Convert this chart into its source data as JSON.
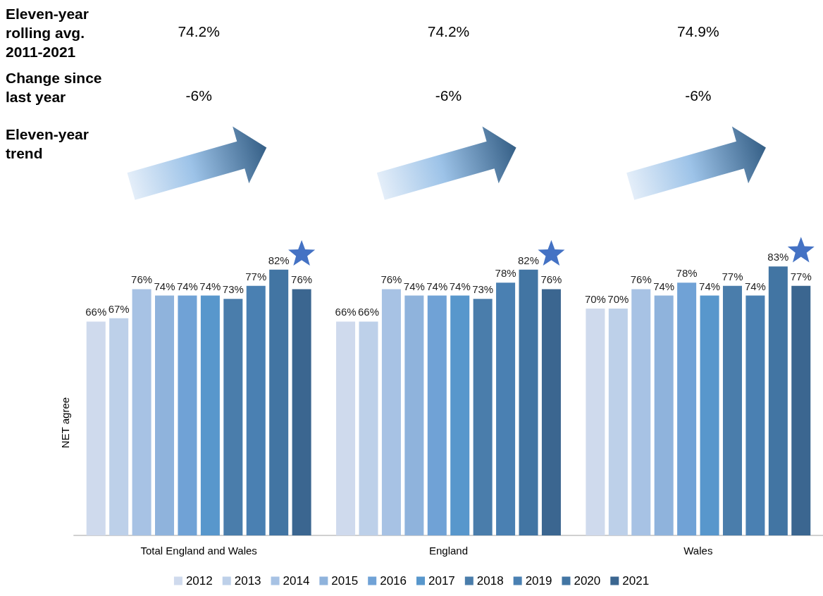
{
  "chart_data": {
    "type": "bar",
    "ylabel": "NET agree",
    "categories": [
      "Total England and Wales",
      "England",
      "Wales"
    ],
    "series": [
      {
        "name": "2012",
        "color": "#cfdaed",
        "values": [
          66,
          66,
          70
        ],
        "value_labels": [
          "66%",
          "66%",
          "70%"
        ]
      },
      {
        "name": "2013",
        "color": "#bdd0e9",
        "values": [
          67,
          66,
          70
        ],
        "value_labels": [
          "67%",
          "66%",
          "70%"
        ]
      },
      {
        "name": "2014",
        "color": "#a7c2e4",
        "values": [
          76,
          76,
          76
        ],
        "value_labels": [
          "76%",
          "76%",
          "76%"
        ]
      },
      {
        "name": "2015",
        "color": "#8fb3dc",
        "values": [
          74,
          74,
          74
        ],
        "value_labels": [
          "74%",
          "74%",
          "74%"
        ]
      },
      {
        "name": "2016",
        "color": "#70a2d6",
        "values": [
          74,
          74,
          78
        ],
        "value_labels": [
          "74%",
          "74%",
          "78%"
        ]
      },
      {
        "name": "2017",
        "color": "#5897cc",
        "values": [
          74,
          74,
          74
        ],
        "value_labels": [
          "74%",
          "74%",
          "74%"
        ]
      },
      {
        "name": "2018",
        "color": "#4a7dab",
        "values": [
          73,
          73,
          77
        ],
        "value_labels": [
          "73%",
          "73%",
          "77%"
        ]
      },
      {
        "name": "2019",
        "color": "#4a80b2",
        "values": [
          77,
          78,
          74
        ],
        "value_labels": [
          "77%",
          "78%",
          "74%"
        ]
      },
      {
        "name": "2020",
        "color": "#4275a3",
        "values": [
          82,
          82,
          83
        ],
        "value_labels": [
          "82%",
          "82%",
          "83%"
        ]
      },
      {
        "name": "2021",
        "color": "#3b6690",
        "values": [
          76,
          76,
          77
        ],
        "value_labels": [
          "76%",
          "76%",
          "77%"
        ]
      }
    ],
    "annotations": [
      "Eleven-year rolling avg. 2011-2021",
      "74.2%",
      "74.2%",
      "74.9%",
      "Change since last year",
      "-6%",
      "-6%",
      "-6%",
      "Eleven-year trend"
    ],
    "legend": "bottom",
    "grid": false
  }
}
